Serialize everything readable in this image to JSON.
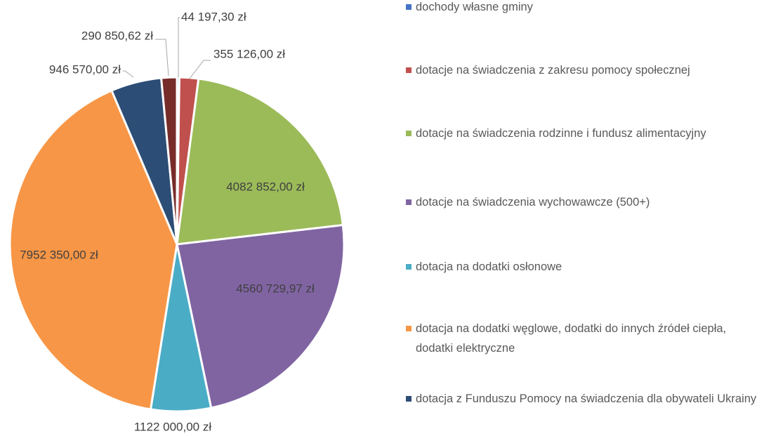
{
  "chart_data": {
    "type": "pie",
    "categories": [
      "dochody własne gminy",
      "dotacje na świadczenia z zakresu pomocy społecznej",
      "dotacje na świadczenia rodzinne i fundusz alimentacyjny",
      "dotacje na świadczenia wychowawcze (500+)",
      "dotacja na dodatki osłonowe",
      "dotacja na dodatki węglowe, dodatki do innych źródeł ciepła, dodatki elektryczne",
      "dotacja z Funduszu Pomocy na świadczenia dla obywateli Ukrainy",
      null
    ],
    "values": [
      44197.3,
      355126,
      4082852,
      4560729.97,
      1122000,
      7952350,
      946570,
      290850.62
    ],
    "value_labels": [
      "44 197,30 zł",
      "355 126,00 zł",
      "4082 852,00 zł",
      "4560 729,97 zł",
      "1122 000,00 zł",
      "7952 350,00 zł",
      "946 570,00 zł",
      "290 850,62 zł"
    ],
    "colors": [
      "#4472c4",
      "#c0504d",
      "#9bbb59",
      "#8064a2",
      "#4bacc6",
      "#f79646",
      "#2c4d75",
      "#772c2a"
    ],
    "legend": "right"
  }
}
